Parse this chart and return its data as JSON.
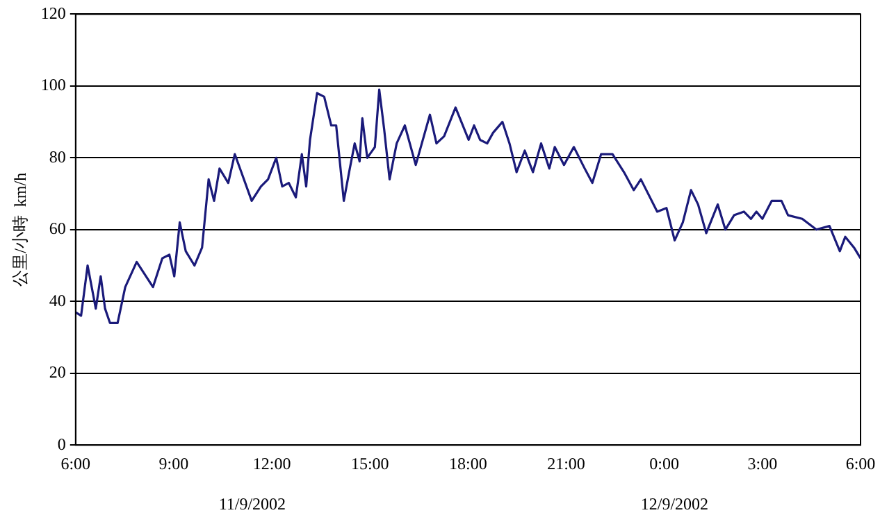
{
  "chart_data": {
    "type": "line",
    "ylabel": "公里/小時  km/h",
    "x": [
      "2002-09-11T06:00",
      "2002-09-11T06:10",
      "2002-09-11T06:22",
      "2002-09-11T06:37",
      "2002-09-11T06:46",
      "2002-09-11T06:54",
      "2002-09-11T07:03",
      "2002-09-11T07:17",
      "2002-09-11T07:31",
      "2002-09-11T07:52",
      "2002-09-11T08:22",
      "2002-09-11T08:39",
      "2002-09-11T08:52",
      "2002-09-11T09:01",
      "2002-09-11T09:11",
      "2002-09-11T09:22",
      "2002-09-11T09:38",
      "2002-09-11T09:52",
      "2002-09-11T10:04",
      "2002-09-11T10:14",
      "2002-09-11T10:24",
      "2002-09-11T10:40",
      "2002-09-11T10:52",
      "2002-09-11T11:04",
      "2002-09-11T11:23",
      "2002-09-11T11:40",
      "2002-09-11T11:53",
      "2002-09-11T12:08",
      "2002-09-11T12:19",
      "2002-09-11T12:31",
      "2002-09-11T12:44",
      "2002-09-11T12:55",
      "2002-09-11T13:03",
      "2002-09-11T13:10",
      "2002-09-11T13:23",
      "2002-09-11T13:36",
      "2002-09-11T13:49",
      "2002-09-11T13:58",
      "2002-09-11T14:12",
      "2002-09-11T14:23",
      "2002-09-11T14:32",
      "2002-09-11T14:41",
      "2002-09-11T14:46",
      "2002-09-11T14:55",
      "2002-09-11T15:09",
      "2002-09-11T15:17",
      "2002-09-11T15:26",
      "2002-09-11T15:36",
      "2002-09-11T15:49",
      "2002-09-11T16:04",
      "2002-09-11T16:24",
      "2002-09-11T16:50",
      "2002-09-11T17:02",
      "2002-09-11T17:16",
      "2002-09-11T17:37",
      "2002-09-11T18:01",
      "2002-09-11T18:11",
      "2002-09-11T18:22",
      "2002-09-11T18:35",
      "2002-09-11T18:46",
      "2002-09-11T19:03",
      "2002-09-11T19:16",
      "2002-09-11T19:29",
      "2002-09-11T19:44",
      "2002-09-11T19:59",
      "2002-09-11T20:14",
      "2002-09-11T20:29",
      "2002-09-11T20:39",
      "2002-09-11T20:56",
      "2002-09-11T21:14",
      "2002-09-11T21:34",
      "2002-09-11T21:48",
      "2002-09-11T22:04",
      "2002-09-11T22:25",
      "2002-09-11T22:46",
      "2002-09-11T23:04",
      "2002-09-11T23:17",
      "2002-09-11T23:47",
      "2002-09-12T00:04",
      "2002-09-12T00:19",
      "2002-09-12T00:34",
      "2002-09-12T00:49",
      "2002-09-12T01:02",
      "2002-09-12T01:17",
      "2002-09-12T01:38",
      "2002-09-12T01:52",
      "2002-09-12T02:08",
      "2002-09-12T02:26",
      "2002-09-12T02:39",
      "2002-09-12T02:49",
      "2002-09-12T03:00",
      "2002-09-12T03:17",
      "2002-09-12T03:35",
      "2002-09-12T03:47",
      "2002-09-12T04:13",
      "2002-09-12T04:39",
      "2002-09-12T05:03",
      "2002-09-12T05:22",
      "2002-09-12T05:32",
      "2002-09-12T05:48",
      "2002-09-12T06:00"
    ],
    "series": [
      {
        "color": "#1a1a7a",
        "values": [
          37,
          36,
          50,
          38,
          47,
          38,
          34,
          34,
          44,
          51,
          44,
          52,
          53,
          47,
          62,
          54,
          50,
          55,
          74,
          68,
          77,
          73,
          81,
          76,
          68,
          72,
          74,
          80,
          72,
          73,
          69,
          81,
          72,
          85,
          98,
          97,
          89,
          89,
          68,
          77,
          84,
          79,
          91,
          80,
          83,
          99,
          88,
          74,
          84,
          89,
          78,
          92,
          84,
          86,
          94,
          85,
          89,
          85,
          84,
          87,
          90,
          84,
          76,
          82,
          76,
          84,
          77,
          83,
          78,
          83,
          77,
          73,
          81,
          81,
          76,
          71,
          74,
          65,
          66,
          57,
          62,
          71,
          67,
          59,
          67,
          60,
          64,
          65,
          63,
          65,
          63,
          68,
          68,
          64,
          63,
          60,
          61,
          54,
          58,
          55,
          52
        ]
      }
    ],
    "xlim": [
      "2002-09-11T06:00",
      "2002-09-12T06:00"
    ],
    "xticks": [
      {
        "value": "2002-09-11T06:00",
        "label": "6:00"
      },
      {
        "value": "2002-09-11T09:00",
        "label": "9:00"
      },
      {
        "value": "2002-09-11T12:00",
        "label": "12:00"
      },
      {
        "value": "2002-09-11T15:00",
        "label": "15:00"
      },
      {
        "value": "2002-09-11T18:00",
        "label": "18:00"
      },
      {
        "value": "2002-09-11T21:00",
        "label": "21:00"
      },
      {
        "value": "2002-09-12T00:00",
        "label": "0:00"
      },
      {
        "value": "2002-09-12T03:00",
        "label": "3:00"
      },
      {
        "value": "2002-09-12T06:00",
        "label": "6:00"
      }
    ],
    "ylim": [
      0,
      120
    ],
    "yticks": [
      0,
      20,
      40,
      60,
      80,
      100,
      120
    ],
    "annotations": [
      "11/9/2002",
      "12/9/2002"
    ],
    "grid": "y",
    "legend": false,
    "marker": "none",
    "line_style": "solid"
  }
}
